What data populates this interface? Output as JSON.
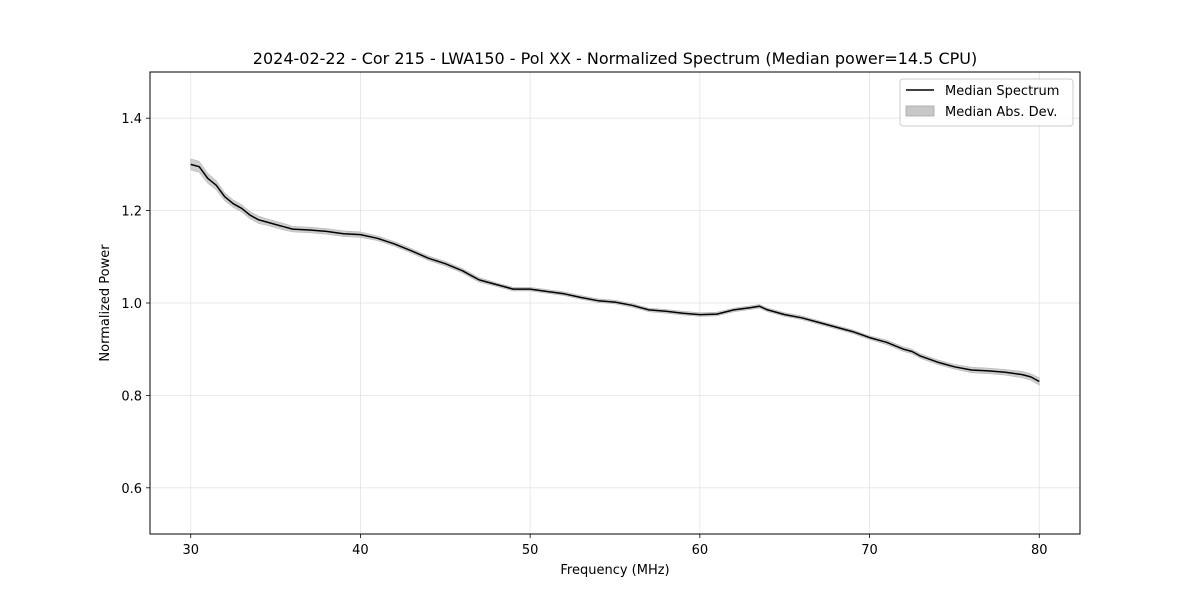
{
  "chart_data": {
    "type": "line",
    "title": "2024-02-22 - Cor 215 - LWA150 - Pol XX - Normalized Spectrum (Median power=14.5 CPU)",
    "xlabel": "Frequency (MHz)",
    "ylabel": "Normalized Power",
    "xlim": [
      27.6,
      82.4
    ],
    "ylim": [
      0.5,
      1.5
    ],
    "xticks": [
      30,
      40,
      50,
      60,
      70,
      80
    ],
    "yticks": [
      0.6,
      0.8,
      1.0,
      1.2,
      1.4
    ],
    "xtick_labels": [
      "30",
      "40",
      "50",
      "60",
      "70",
      "80"
    ],
    "ytick_labels": [
      "0.6",
      "0.8",
      "1.0",
      "1.2",
      "1.4"
    ],
    "grid": true,
    "legend_position": "top-right",
    "series": [
      {
        "name": "Median Spectrum",
        "kind": "line",
        "color": "#000000",
        "x": [
          30.0,
          30.5,
          31.0,
          31.5,
          32.0,
          32.5,
          33.0,
          33.5,
          34.0,
          34.5,
          35.0,
          35.5,
          36.0,
          37.0,
          38.0,
          39.0,
          40.0,
          41.0,
          42.0,
          43.0,
          44.0,
          45.0,
          46.0,
          46.5,
          47.0,
          48.0,
          49.0,
          50.0,
          51.0,
          52.0,
          53.0,
          54.0,
          55.0,
          56.0,
          57.0,
          58.0,
          59.0,
          60.0,
          61.0,
          62.0,
          63.0,
          63.5,
          64.0,
          65.0,
          66.0,
          67.0,
          68.0,
          69.0,
          70.0,
          71.0,
          72.0,
          72.5,
          73.0,
          74.0,
          75.0,
          76.0,
          77.0,
          78.0,
          79.0,
          79.5,
          80.0
        ],
        "y": [
          1.3,
          1.295,
          1.27,
          1.255,
          1.23,
          1.215,
          1.205,
          1.19,
          1.18,
          1.175,
          1.17,
          1.165,
          1.16,
          1.158,
          1.155,
          1.15,
          1.148,
          1.14,
          1.128,
          1.113,
          1.097,
          1.085,
          1.07,
          1.06,
          1.05,
          1.04,
          1.03,
          1.03,
          1.025,
          1.02,
          1.012,
          1.005,
          1.002,
          0.995,
          0.985,
          0.982,
          0.978,
          0.975,
          0.976,
          0.985,
          0.99,
          0.993,
          0.985,
          0.975,
          0.968,
          0.958,
          0.948,
          0.938,
          0.925,
          0.915,
          0.9,
          0.895,
          0.885,
          0.872,
          0.862,
          0.855,
          0.853,
          0.85,
          0.845,
          0.84,
          0.83
        ]
      },
      {
        "name": "Median Abs. Dev.",
        "kind": "band",
        "color": "#c8c8c8",
        "half_width": [
          0.012,
          0.012,
          0.011,
          0.01,
          0.009,
          0.008,
          0.008,
          0.008,
          0.008,
          0.007,
          0.007,
          0.007,
          0.006,
          0.006,
          0.006,
          0.006,
          0.006,
          0.005,
          0.005,
          0.005,
          0.005,
          0.005,
          0.005,
          0.005,
          0.005,
          0.004,
          0.004,
          0.004,
          0.004,
          0.004,
          0.004,
          0.004,
          0.004,
          0.004,
          0.004,
          0.004,
          0.004,
          0.004,
          0.004,
          0.004,
          0.004,
          0.004,
          0.004,
          0.004,
          0.004,
          0.004,
          0.004,
          0.004,
          0.004,
          0.005,
          0.005,
          0.005,
          0.005,
          0.005,
          0.005,
          0.006,
          0.006,
          0.006,
          0.007,
          0.007,
          0.008
        ]
      }
    ]
  }
}
